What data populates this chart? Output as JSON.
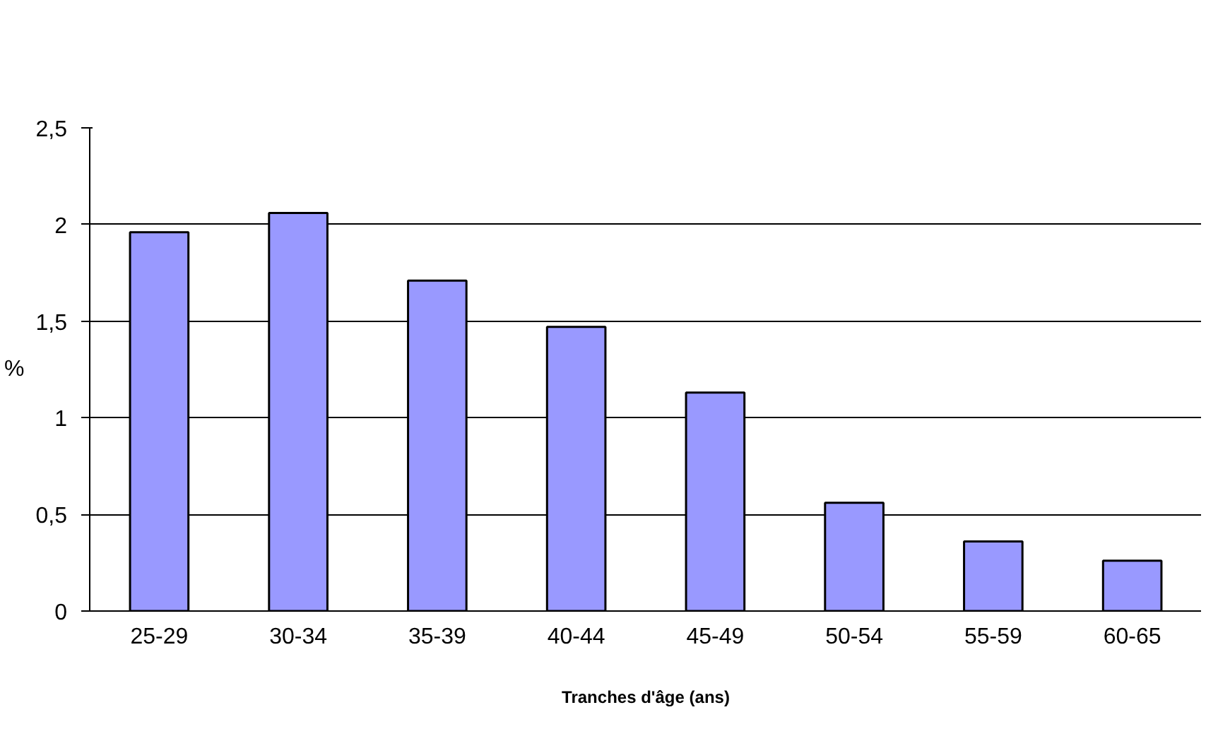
{
  "chart_data": {
    "type": "bar",
    "xlabel": "Tranches d'âge (ans)",
    "ylabel": "%",
    "categories": [
      "25-29",
      "30-34",
      "35-39",
      "40-44",
      "45-49",
      "50-54",
      "55-59",
      "60-65"
    ],
    "values": [
      1.96,
      2.06,
      1.71,
      1.47,
      1.13,
      0.56,
      0.36,
      0.26
    ],
    "color": "#9999ff",
    "ylim": [
      0,
      2.5
    ],
    "yticks": [
      {
        "value": 0,
        "label": "0"
      },
      {
        "value": 0.5,
        "label": "0,5"
      },
      {
        "value": 1,
        "label": "1"
      },
      {
        "value": 1.5,
        "label": "1,5"
      },
      {
        "value": 2,
        "label": "2"
      },
      {
        "value": 2.5,
        "label": "2,5"
      }
    ],
    "grid": "y"
  }
}
